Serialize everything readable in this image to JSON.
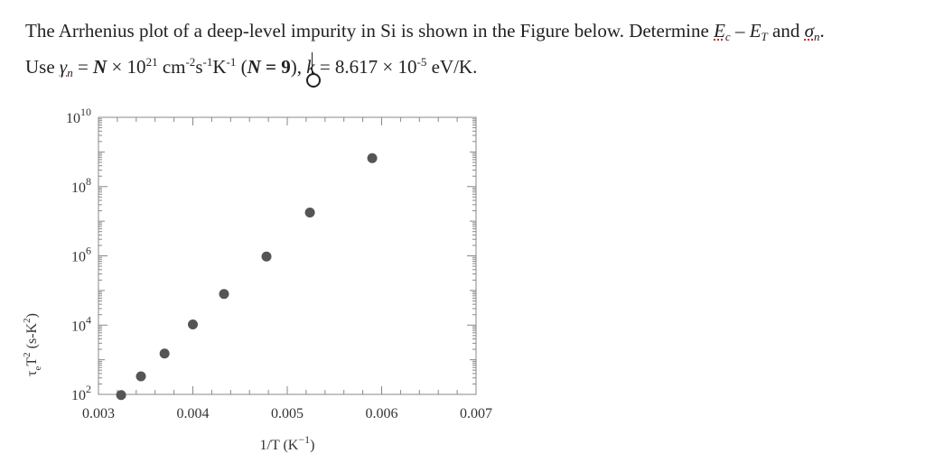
{
  "problem": {
    "line1": {
      "prefix": "The Arrhenius plot of a deep-level impurity in Si is shown in the Figure below. Determine ",
      "ec": "E",
      "ec_sub": "c",
      "minus_et": " – E",
      "et_sub": "T",
      "and": " and ",
      "sigma": "σ",
      "sigma_sub": "n",
      "end": "."
    },
    "line2": {
      "use": "Use ",
      "gamma": "γ",
      "gamma_sub": "n",
      "eq": " = ",
      "N": "N",
      "times": " × 10",
      "exp21": "21",
      "units": " cm",
      "units_exp1": "-2",
      "units_s": "s",
      "units_exp2": "-1",
      "units_K": "K",
      "units_exp3": "-1",
      "open_paren": " (",
      "N2": "N",
      "eq9": " = 9",
      "close": "), ",
      "k": "k",
      "kval": " = 8.617 × 10",
      "kexp": "-5",
      "kunit": " eV/K."
    }
  },
  "chart_data": {
    "type": "scatter",
    "xlabel": "1/T (K⁻¹)",
    "ylabel": "τ_e T² (s-K²)",
    "xlim": [
      0.003,
      0.007
    ],
    "ylim_log10": [
      2,
      10
    ],
    "y_scale": "log",
    "x_ticks": [
      "0.003",
      "0.004",
      "0.005",
      "0.006",
      "0.007"
    ],
    "y_ticks": [
      "2",
      "4",
      "6",
      "8",
      "10"
    ],
    "points": [
      {
        "x": 0.00324,
        "y_log10": 1.98
      },
      {
        "x": 0.00345,
        "y_log10": 2.52
      },
      {
        "x": 0.0037,
        "y_log10": 3.18
      },
      {
        "x": 0.004,
        "y_log10": 4.02
      },
      {
        "x": 0.00433,
        "y_log10": 4.9
      },
      {
        "x": 0.00478,
        "y_log10": 5.98
      },
      {
        "x": 0.00524,
        "y_log10": 7.25
      },
      {
        "x": 0.0059,
        "y_log10": 8.82
      }
    ],
    "marker_color": "#555555",
    "axis_color": "#888888"
  }
}
